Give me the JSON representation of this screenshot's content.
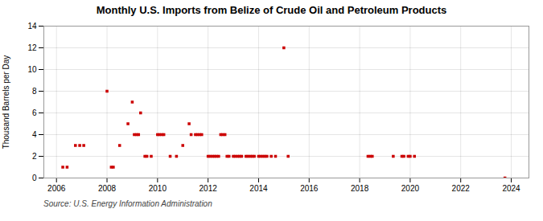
{
  "chart_data": {
    "type": "scatter",
    "title": "Monthly U.S. Imports from Belize of Crude Oil and Petroleum Products",
    "ylabel": "Thousand Barrels per Day",
    "source": "Source: U.S. Energy Information Administration",
    "x": [
      2006.25,
      2006.42,
      2006.75,
      2006.92,
      2007.08,
      2008.0,
      2008.17,
      2008.25,
      2008.5,
      2008.83,
      2009.0,
      2009.08,
      2009.17,
      2009.25,
      2009.33,
      2009.5,
      2009.58,
      2009.75,
      2010.0,
      2010.08,
      2010.17,
      2010.25,
      2010.5,
      2010.75,
      2011.0,
      2011.25,
      2011.33,
      2011.5,
      2011.58,
      2011.67,
      2011.75,
      2012.0,
      2012.08,
      2012.17,
      2012.25,
      2012.33,
      2012.42,
      2012.5,
      2012.58,
      2012.67,
      2012.75,
      2012.83,
      2013.0,
      2013.08,
      2013.17,
      2013.25,
      2013.33,
      2013.5,
      2013.58,
      2013.67,
      2013.75,
      2013.83,
      2014.0,
      2014.08,
      2014.17,
      2014.25,
      2014.33,
      2014.5,
      2014.67,
      2015.0,
      2015.17,
      2018.33,
      2018.42,
      2018.5,
      2019.33,
      2019.67,
      2019.75,
      2019.92,
      2020.0,
      2020.17,
      2023.75
    ],
    "values": [
      1,
      1,
      3,
      3,
      3,
      8,
      1,
      1,
      3,
      5,
      7,
      4,
      4,
      4,
      6,
      2,
      2,
      2,
      4,
      4,
      4,
      4,
      2,
      2,
      3,
      5,
      4,
      4,
      4,
      4,
      4,
      2,
      2,
      2,
      2,
      2,
      2,
      4,
      4,
      4,
      2,
      2,
      2,
      2,
      2,
      2,
      2,
      2,
      2,
      2,
      2,
      2,
      2,
      2,
      2,
      2,
      2,
      2,
      2,
      12,
      2,
      2,
      2,
      2,
      2,
      2,
      2,
      2,
      2,
      2,
      0
    ],
    "color": "#CC0000",
    "marker": "square",
    "xlim": [
      2005.5,
      2024.7
    ],
    "ylim": [
      0,
      14
    ],
    "xticks": [
      2006,
      2008,
      2010,
      2012,
      2014,
      2016,
      2018,
      2020,
      2022,
      2024
    ],
    "yticks": [
      0,
      2,
      4,
      6,
      8,
      10,
      12,
      14
    ],
    "grid": true
  }
}
